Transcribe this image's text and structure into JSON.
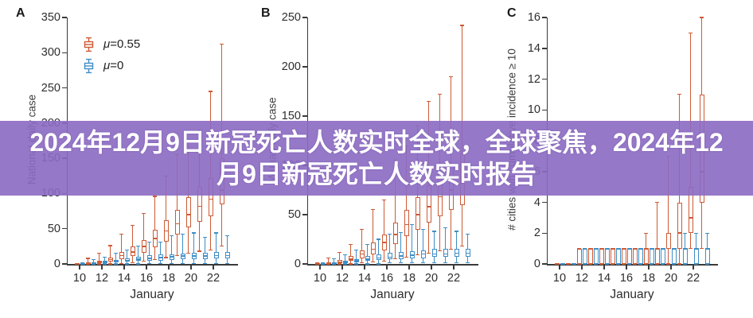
{
  "banner": {
    "text": "2024年12月9日新冠死亡人数实时全球，全球聚焦，2024年12月9日新冠死亡人数实时报告",
    "background_hex": "#8C6BC3",
    "background_rgba": "rgba(140,107,195,0.91)",
    "text_color": "#ffffff"
  },
  "chart_data": [
    {
      "panel_label": "A",
      "type": "boxplot",
      "ylabel": "National daily case",
      "xlabel": "January",
      "ylim": [
        0,
        350
      ],
      "yticks": [
        0,
        50,
        100,
        150,
        200,
        250,
        300,
        350
      ],
      "xticks": [
        10,
        12,
        14,
        16,
        18,
        20,
        22
      ],
      "days": [
        10,
        11,
        12,
        13,
        14,
        15,
        16,
        17,
        18,
        19,
        20,
        21,
        22,
        23
      ],
      "legend": {
        "show": true,
        "position": "upper-left"
      },
      "series": [
        {
          "name": "μ=0.55",
          "color": "#cd5b35",
          "boxes": [
            [
              0,
              0,
              0,
              0,
              1
            ],
            [
              0,
              0,
              1,
              2,
              8
            ],
            [
              0,
              1,
              3,
              5,
              15
            ],
            [
              0,
              3,
              6,
              9,
              26
            ],
            [
              1,
              7,
              12,
              17,
              42
            ],
            [
              2,
              11,
              17,
              25,
              55
            ],
            [
              4,
              16,
              25,
              34,
              72
            ],
            [
              6,
              24,
              36,
              48,
              96
            ],
            [
              9,
              32,
              47,
              62,
              125
            ],
            [
              12,
              42,
              57,
              77,
              155
            ],
            [
              15,
              52,
              70,
              95,
              175
            ],
            [
              18,
              60,
              82,
              110,
              190
            ],
            [
              20,
              68,
              92,
              122,
              245
            ],
            [
              25,
              85,
              105,
              150,
              312
            ]
          ]
        },
        {
          "name": "μ=0",
          "color": "#3f8ec6",
          "boxes": [
            [
              0,
              0,
              0,
              0,
              2
            ],
            [
              0,
              0,
              1,
              2,
              6
            ],
            [
              0,
              1,
              2,
              4,
              10
            ],
            [
              0,
              2,
              4,
              6,
              15
            ],
            [
              0,
              3,
              5,
              8,
              20
            ],
            [
              0,
              4,
              7,
              10,
              25
            ],
            [
              1,
              5,
              8,
              12,
              31
            ],
            [
              1,
              5,
              9,
              13,
              31
            ],
            [
              1,
              6,
              10,
              14,
              40
            ],
            [
              1,
              7,
              11,
              15,
              42
            ],
            [
              1,
              7,
              11,
              16,
              44
            ],
            [
              1,
              7,
              11,
              16,
              38
            ],
            [
              1,
              8,
              12,
              17,
              44
            ],
            [
              1,
              8,
              12,
              17,
              40
            ]
          ]
        }
      ]
    },
    {
      "panel_label": "B",
      "type": "boxplot",
      "ylabel": "Wuhan daily case",
      "xlabel": "January",
      "ylim": [
        0,
        250
      ],
      "yticks": [
        0,
        50,
        100,
        150,
        200,
        250
      ],
      "xticks": [
        10,
        12,
        14,
        16,
        18,
        20,
        22
      ],
      "days": [
        10,
        11,
        12,
        13,
        14,
        15,
        16,
        17,
        18,
        19,
        20,
        21,
        22,
        23
      ],
      "legend": {
        "show": false
      },
      "series": [
        {
          "name": "μ=0.55",
          "color": "#cd5b35",
          "boxes": [
            [
              0,
              0,
              0,
              0,
              1
            ],
            [
              0,
              0,
              1,
              2,
              6
            ],
            [
              0,
              1,
              2,
              4,
              12
            ],
            [
              0,
              3,
              5,
              8,
              20
            ],
            [
              1,
              6,
              10,
              14,
              35
            ],
            [
              2,
              10,
              15,
              22,
              55
            ],
            [
              3,
              14,
              22,
              30,
              65
            ],
            [
              5,
              20,
              30,
              42,
              105
            ],
            [
              7,
              28,
              40,
              55,
              120
            ],
            [
              9,
              35,
              50,
              68,
              140
            ],
            [
              11,
              42,
              58,
              80,
              165
            ],
            [
              13,
              48,
              68,
              92,
              172
            ],
            [
              15,
              55,
              75,
              100,
              190
            ],
            [
              18,
              60,
              82,
              112,
              242
            ]
          ]
        },
        {
          "name": "μ=0",
          "color": "#3f8ec6",
          "boxes": [
            [
              0,
              0,
              0,
              0,
              1
            ],
            [
              0,
              0,
              1,
              2,
              5
            ],
            [
              0,
              1,
              2,
              3,
              9
            ],
            [
              0,
              2,
              3,
              5,
              14
            ],
            [
              0,
              3,
              5,
              8,
              20
            ],
            [
              0,
              4,
              6,
              10,
              25
            ],
            [
              1,
              5,
              7,
              11,
              30
            ],
            [
              1,
              5,
              8,
              12,
              32
            ],
            [
              1,
              6,
              9,
              13,
              40
            ],
            [
              1,
              6,
              10,
              14,
              35
            ],
            [
              1,
              7,
              10,
              15,
              33
            ],
            [
              1,
              7,
              10,
              15,
              37
            ],
            [
              1,
              7,
              11,
              15,
              33
            ],
            [
              1,
              7,
              11,
              15,
              30
            ]
          ]
        }
      ]
    },
    {
      "panel_label": "C",
      "type": "boxplot",
      "ylabel": "# cities with cumulative incidence ≥ 10",
      "xlabel": "January",
      "ylim": [
        0,
        16
      ],
      "yticks": [
        0,
        2,
        4,
        6,
        8,
        10,
        12,
        14,
        16
      ],
      "xticks": [
        10,
        12,
        14,
        16,
        18,
        20,
        22
      ],
      "days": [
        10,
        11,
        12,
        13,
        14,
        15,
        16,
        17,
        18,
        19,
        20,
        21,
        22,
        23
      ],
      "legend": {
        "show": false
      },
      "series": [
        {
          "name": "μ=0.55",
          "color": "#cd5b35",
          "boxes": [
            [
              0,
              0,
              0,
              0,
              0
            ],
            [
              0,
              0,
              0,
              0,
              0
            ],
            [
              0,
              0,
              0,
              1,
              1
            ],
            [
              0,
              0,
              1,
              1,
              1
            ],
            [
              0,
              0,
              1,
              1,
              1
            ],
            [
              0,
              0,
              1,
              1,
              1
            ],
            [
              0,
              0,
              1,
              1,
              1
            ],
            [
              0,
              0,
              1,
              1,
              1
            ],
            [
              0,
              0,
              1,
              1,
              2
            ],
            [
              0,
              0,
              1,
              1,
              4
            ],
            [
              0,
              1,
              1,
              2,
              7
            ],
            [
              0,
              1,
              2,
              4,
              11
            ],
            [
              1,
              2,
              3,
              5,
              15
            ],
            [
              1,
              4,
              6,
              11,
              16
            ]
          ]
        },
        {
          "name": "μ=0",
          "color": "#3f8ec6",
          "boxes": [
            [
              0,
              0,
              0,
              0,
              0
            ],
            [
              0,
              0,
              0,
              0,
              0
            ],
            [
              0,
              0,
              0,
              1,
              1
            ],
            [
              0,
              0,
              1,
              1,
              1
            ],
            [
              0,
              0,
              1,
              1,
              1
            ],
            [
              0,
              0,
              1,
              1,
              1
            ],
            [
              0,
              0,
              1,
              1,
              1
            ],
            [
              0,
              0,
              1,
              1,
              1
            ],
            [
              0,
              0,
              1,
              1,
              1
            ],
            [
              0,
              0,
              1,
              1,
              1
            ],
            [
              0,
              0,
              1,
              1,
              1
            ],
            [
              0,
              0,
              1,
              1,
              2
            ],
            [
              0,
              0,
              1,
              1,
              2
            ],
            [
              0,
              0,
              1,
              1,
              2
            ]
          ]
        }
      ]
    }
  ],
  "axis_color": "#3a3a3a"
}
